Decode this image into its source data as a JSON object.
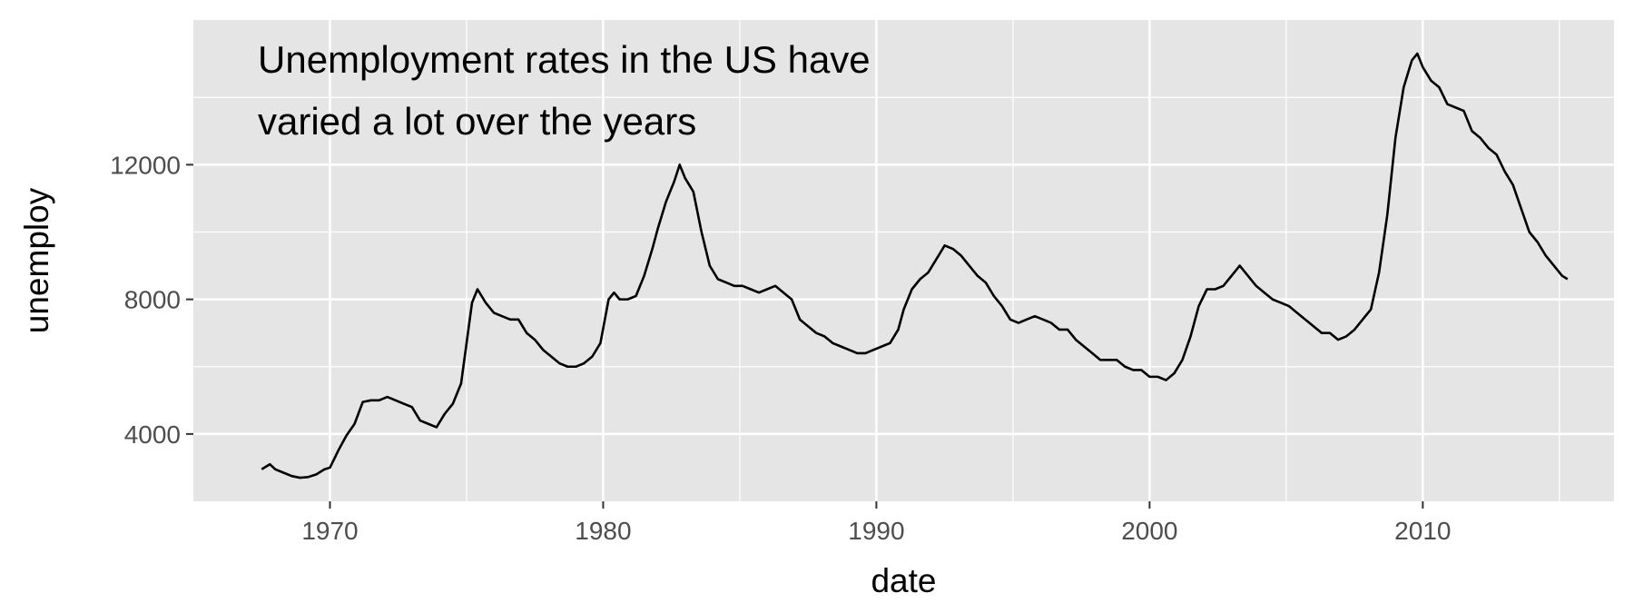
{
  "chart_data": {
    "type": "line",
    "title": "",
    "xlabel": "date",
    "ylabel": "unemploy",
    "annotation_lines": [
      "Unemployment rates in the US have",
      "varied a lot over the years"
    ],
    "xlim": [
      1965,
      2017
    ],
    "ylim": [
      2000,
      16300
    ],
    "x_ticks": [
      1970,
      1980,
      1990,
      2000,
      2010
    ],
    "x_tick_labels": [
      "1970",
      "1980",
      "1990",
      "2000",
      "2010"
    ],
    "y_ticks": [
      4000,
      8000,
      12000
    ],
    "y_tick_labels": [
      "4000",
      "8000",
      "12000"
    ],
    "grid": true,
    "legend": "none",
    "colors": {
      "panel": "#e5e5e5",
      "grid": "#ffffff",
      "line": "#000000",
      "tick_text": "#4d4d4d",
      "axis_title": "#000000"
    },
    "series": [
      {
        "x": [
          1967.5,
          1967.8,
          1968.0,
          1968.3,
          1968.6,
          1968.9,
          1969.2,
          1969.5,
          1969.8,
          1970.0,
          1970.3,
          1970.6,
          1970.9,
          1971.2,
          1971.5,
          1971.8,
          1972.1,
          1972.4,
          1972.7,
          1973.0,
          1973.3,
          1973.6,
          1973.9,
          1974.2,
          1974.5,
          1974.8,
          1975.0,
          1975.2,
          1975.4,
          1975.7,
          1976.0,
          1976.3,
          1976.6,
          1976.9,
          1977.2,
          1977.5,
          1977.8,
          1978.1,
          1978.4,
          1978.7,
          1979.0,
          1979.3,
          1979.6,
          1979.9,
          1980.2,
          1980.4,
          1980.6,
          1980.9,
          1981.2,
          1981.5,
          1981.8,
          1982.0,
          1982.3,
          1982.6,
          1982.8,
          1983.0,
          1983.3,
          1983.6,
          1983.9,
          1984.2,
          1984.5,
          1984.8,
          1985.1,
          1985.4,
          1985.7,
          1986.0,
          1986.3,
          1986.6,
          1986.9,
          1987.2,
          1987.5,
          1987.8,
          1988.1,
          1988.4,
          1988.7,
          1989.0,
          1989.3,
          1989.6,
          1989.9,
          1990.2,
          1990.5,
          1990.8,
          1991.0,
          1991.3,
          1991.6,
          1991.9,
          1992.2,
          1992.5,
          1992.8,
          1993.1,
          1993.4,
          1993.7,
          1994.0,
          1994.3,
          1994.6,
          1994.9,
          1995.2,
          1995.5,
          1995.8,
          1996.1,
          1996.4,
          1996.7,
          1997.0,
          1997.3,
          1997.6,
          1997.9,
          1998.2,
          1998.5,
          1998.8,
          1999.1,
          1999.4,
          1999.7,
          2000.0,
          2000.3,
          2000.6,
          2000.9,
          2001.2,
          2001.5,
          2001.8,
          2002.1,
          2002.4,
          2002.7,
          2003.0,
          2003.3,
          2003.6,
          2003.9,
          2004.2,
          2004.5,
          2004.8,
          2005.1,
          2005.4,
          2005.7,
          2006.0,
          2006.3,
          2006.6,
          2006.9,
          2007.2,
          2007.5,
          2007.8,
          2008.1,
          2008.4,
          2008.7,
          2009.0,
          2009.3,
          2009.6,
          2009.8,
          2010.0,
          2010.3,
          2010.6,
          2010.9,
          2011.2,
          2011.5,
          2011.8,
          2012.1,
          2012.4,
          2012.7,
          2013.0,
          2013.3,
          2013.6,
          2013.9,
          2014.2,
          2014.5,
          2014.8,
          2015.1,
          2015.3
        ],
        "values": [
          2950,
          3100,
          2950,
          2850,
          2750,
          2700,
          2720,
          2800,
          2950,
          3000,
          3500,
          3950,
          4300,
          4950,
          5000,
          5000,
          5100,
          5000,
          4900,
          4800,
          4400,
          4300,
          4200,
          4600,
          4900,
          5500,
          6700,
          7900,
          8300,
          7900,
          7600,
          7500,
          7400,
          7400,
          7000,
          6800,
          6500,
          6300,
          6100,
          6000,
          6000,
          6100,
          6300,
          6700,
          8000,
          8200,
          8000,
          8000,
          8100,
          8700,
          9500,
          10100,
          10900,
          11500,
          12000,
          11600,
          11200,
          10000,
          9000,
          8600,
          8500,
          8400,
          8400,
          8300,
          8200,
          8300,
          8400,
          8200,
          8000,
          7400,
          7200,
          7000,
          6900,
          6700,
          6600,
          6500,
          6400,
          6400,
          6500,
          6600,
          6700,
          7100,
          7700,
          8300,
          8600,
          8800,
          9200,
          9600,
          9500,
          9300,
          9000,
          8700,
          8500,
          8100,
          7800,
          7400,
          7300,
          7400,
          7500,
          7400,
          7300,
          7100,
          7100,
          6800,
          6600,
          6400,
          6200,
          6200,
          6200,
          6000,
          5900,
          5900,
          5700,
          5700,
          5600,
          5800,
          6200,
          6900,
          7800,
          8300,
          8300,
          8400,
          8700,
          9000,
          8700,
          8400,
          8200,
          8000,
          7900,
          7800,
          7600,
          7400,
          7200,
          7000,
          7000,
          6800,
          6900,
          7100,
          7400,
          7700,
          8800,
          10500,
          12800,
          14300,
          15100,
          15300,
          14900,
          14500,
          14300,
          13800,
          13700,
          13600,
          13000,
          12800,
          12500,
          12300,
          11800,
          11400,
          10700,
          10000,
          9700,
          9300,
          9000,
          8700,
          8600
        ]
      }
    ]
  }
}
